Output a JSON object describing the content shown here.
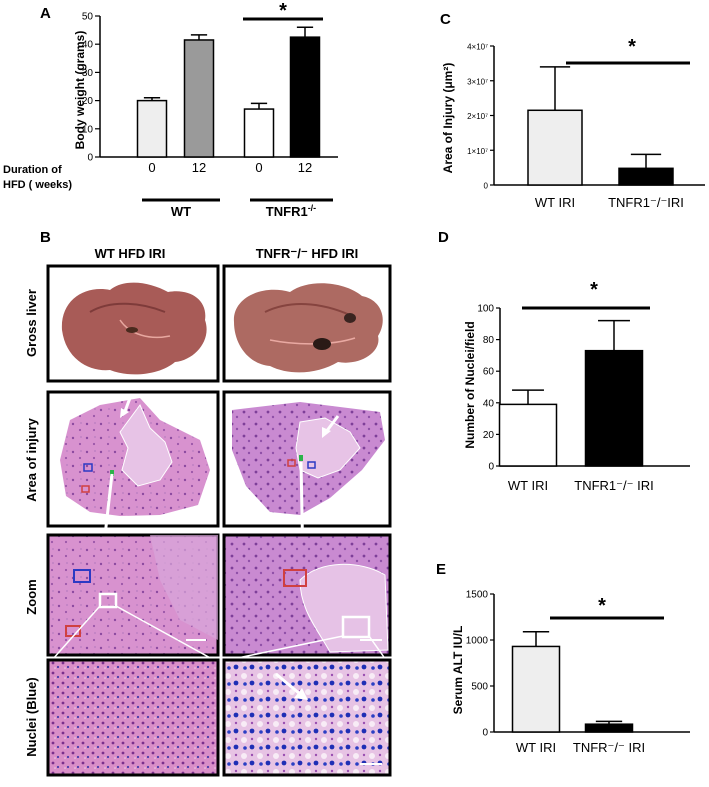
{
  "colors": {
    "wt_naive": "#eeeeee",
    "wt_hfd": "#9a9a9a",
    "tnfr_naive": "#ffffff",
    "tnfr_hfd": "#000000",
    "liver": "#a85a55",
    "he_pink": "#d98fd0",
    "he_purple": "#b07ac4",
    "nuclei_blue": "#2436b8",
    "green_marker": "#2bb34a",
    "he_light": "#e8c7ea"
  },
  "chart_data": [
    {
      "panel": "A",
      "type": "bar",
      "ylabel": "Body weight (grams)",
      "ylim": [
        0,
        50
      ],
      "yticks": [
        0,
        10,
        20,
        30,
        40,
        50
      ],
      "categories": [
        "0",
        "12",
        "0",
        "12"
      ],
      "groups": [
        "WT",
        "TNFR1"
      ],
      "group_superscript": "-/-",
      "row_label_line1": "Duration of",
      "row_label_line2": "HFD  ( weeks)",
      "values": [
        20,
        41.5,
        17,
        42.5
      ],
      "errors": [
        1,
        1.8,
        2,
        3.5
      ],
      "significance": "*"
    },
    {
      "panel": "C",
      "type": "bar",
      "ylabel": "Area of Injury (μm²)",
      "ylim": [
        0,
        40000000
      ],
      "yticks": [
        0,
        10000000,
        20000000,
        30000000,
        40000000
      ],
      "ytick_labels": [
        "0",
        "1×10⁷",
        "2×10⁷",
        "3×10⁷",
        "4×10⁷"
      ],
      "categories": [
        "WT IRI",
        "TNFR1⁻/⁻IRI"
      ],
      "values": [
        21500000,
        4800000
      ],
      "errors": [
        12500000,
        4000000
      ],
      "significance": "*"
    },
    {
      "panel": "D",
      "type": "bar",
      "ylabel": "Number of Nuclei/field",
      "ylim": [
        0,
        100
      ],
      "yticks": [
        0,
        20,
        40,
        60,
        80,
        100
      ],
      "categories": [
        "WT IRI",
        "TNFR1⁻/⁻ IRI"
      ],
      "values": [
        39,
        73
      ],
      "errors": [
        9,
        19
      ],
      "significance": "*"
    },
    {
      "panel": "E",
      "type": "bar",
      "ylabel": "Serum ALT IU/L",
      "ylim": [
        0,
        1500
      ],
      "yticks": [
        0,
        500,
        1000,
        1500
      ],
      "categories": [
        "WT IRI",
        "TNFR⁻/⁻ IRI"
      ],
      "values": [
        930,
        85
      ],
      "errors": [
        160,
        30
      ],
      "significance": "*"
    }
  ],
  "panel_b": {
    "letter": "B",
    "col1": "WT HFD  IRI",
    "col2": "TNFR⁻/⁻ HFD  IRI",
    "rows": [
      "Gross  liver",
      "Area of injury",
      "Zoom",
      "Nuclei (Blue)"
    ]
  }
}
